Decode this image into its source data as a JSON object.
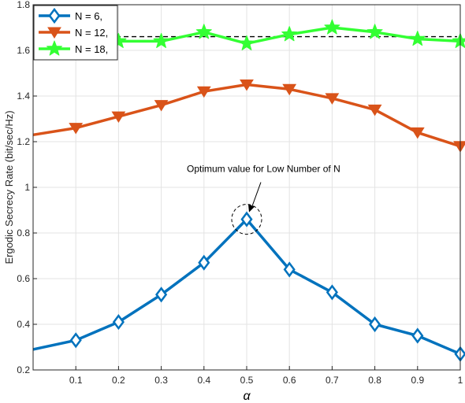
{
  "chart_data": {
    "type": "line",
    "title": "",
    "xlabel": "α",
    "ylabel": "Ergodic Secrecy Rate (bit/sec/Hz)",
    "xlim": [
      0,
      1
    ],
    "ylim": [
      0.2,
      1.8
    ],
    "xticks": [
      "0.1",
      "0.2",
      "0.3",
      "0.4",
      "0.5",
      "0.6",
      "0.7",
      "0.8",
      "0.9",
      "1"
    ],
    "yticks": [
      "0.2",
      "0.4",
      "0.6",
      "0.8",
      "1",
      "1.2",
      "1.4",
      "1.6",
      "1.8"
    ],
    "grid": true,
    "legend_position": "top-left",
    "x": [
      0,
      0.1,
      0.2,
      0.3,
      0.4,
      0.5,
      0.6,
      0.7,
      0.8,
      0.9,
      1.0
    ],
    "series": [
      {
        "name": "N = 6,",
        "marker": "diamond",
        "color": "#0072BD",
        "values": [
          0.29,
          0.33,
          0.41,
          0.53,
          0.67,
          0.86,
          0.64,
          0.54,
          0.4,
          0.35,
          0.27
        ]
      },
      {
        "name": "N = 12,",
        "marker": "triangle-down",
        "color": "#D95319",
        "values": [
          1.23,
          1.26,
          1.31,
          1.36,
          1.42,
          1.45,
          1.43,
          1.39,
          1.34,
          1.24,
          1.18
        ]
      },
      {
        "name": "N = 18,",
        "marker": "star",
        "color": "#33FF33",
        "values": [
          1.63,
          1.64,
          1.64,
          1.64,
          1.68,
          1.63,
          1.67,
          1.7,
          1.68,
          1.65,
          1.64
        ]
      }
    ],
    "reference_line": {
      "y": 1.66,
      "style": "dashed",
      "color": "#000000"
    },
    "annotation": {
      "text": "Optimum value for Low Number of N",
      "points_to_x": 0.5,
      "points_to_y": 0.86
    }
  }
}
